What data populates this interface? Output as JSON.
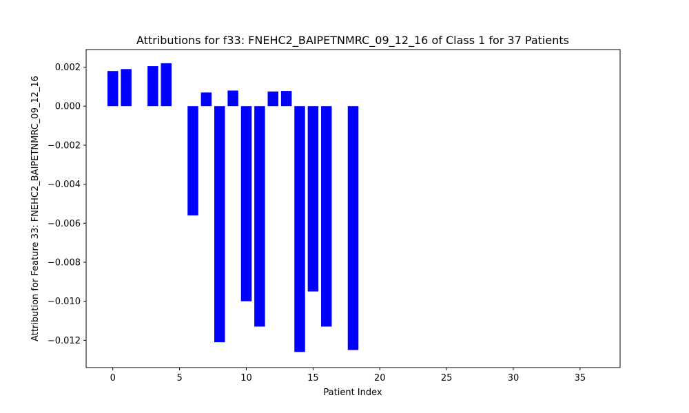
{
  "chart_data": {
    "type": "bar",
    "title": "Attributions for f33: FNEHC2_BAIPETNMRC_09_12_16 of Class 1 for 37 Patients",
    "xlabel": "Patient Index",
    "ylabel": "Attribution for Feature 33: FNEHC2_BAIPETNMRC_09_12_16",
    "bar_color": "#0000ff",
    "xlim": [
      -2,
      38
    ],
    "ylim": [
      -0.0134,
      0.0029
    ],
    "x_ticks": [
      0,
      5,
      10,
      15,
      20,
      25,
      30,
      35
    ],
    "y_ticks": [
      0.002,
      0.0,
      -0.002,
      -0.004,
      -0.006,
      -0.008,
      -0.01,
      -0.012
    ],
    "y_tick_labels": [
      "0.002",
      "0.000",
      "−0.002",
      "−0.004",
      "−0.006",
      "−0.008",
      "−0.010",
      "−0.012"
    ],
    "grid": false,
    "x": [
      0,
      1,
      3,
      4,
      6,
      7,
      8,
      9,
      10,
      11,
      12,
      13,
      14,
      15,
      16,
      18
    ],
    "values": [
      0.0018,
      0.0019,
      0.00205,
      0.0022,
      -0.0056,
      0.0007,
      -0.0121,
      0.0008,
      -0.01,
      -0.0113,
      0.00075,
      0.00078,
      -0.0126,
      -0.0095,
      -0.0113,
      -0.0125
    ]
  }
}
